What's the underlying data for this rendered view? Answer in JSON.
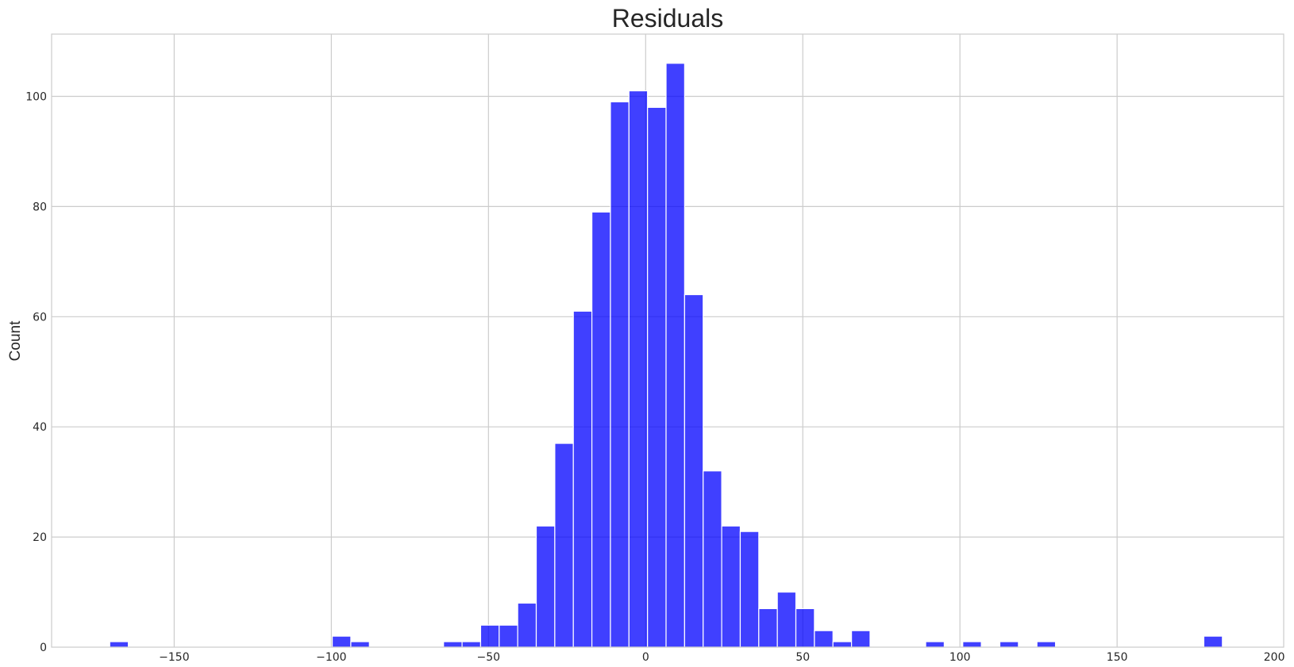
{
  "chart_data": {
    "type": "bar",
    "title": "Residuals",
    "xlabel": "",
    "ylabel": "Count",
    "xlim": [
      -189,
      203
    ],
    "ylim": [
      0,
      111.3
    ],
    "grid": true,
    "x_ticks": [
      -150,
      -100,
      -50,
      0,
      50,
      100,
      150,
      200
    ],
    "x_tick_labels": [
      "−150",
      "−100",
      "−50",
      "0",
      "50",
      "100",
      "150",
      "200"
    ],
    "y_ticks": [
      0,
      20,
      40,
      60,
      80,
      100
    ],
    "y_tick_labels": [
      "0",
      "20",
      "40",
      "60",
      "80",
      "100"
    ],
    "bar_color": "#0000ff",
    "bar_opacity": 0.75,
    "bin_width": 5.9,
    "bins": [
      {
        "x0": -170.5,
        "count": 1
      },
      {
        "x0": -99.7,
        "count": 2
      },
      {
        "x0": -93.8,
        "count": 1
      },
      {
        "x0": -64.3,
        "count": 1
      },
      {
        "x0": -58.4,
        "count": 1
      },
      {
        "x0": -52.5,
        "count": 4
      },
      {
        "x0": -46.6,
        "count": 4
      },
      {
        "x0": -40.7,
        "count": 8
      },
      {
        "x0": -34.8,
        "count": 22
      },
      {
        "x0": -28.9,
        "count": 37
      },
      {
        "x0": -23.0,
        "count": 61
      },
      {
        "x0": -17.1,
        "count": 79
      },
      {
        "x0": -11.2,
        "count": 99
      },
      {
        "x0": -5.3,
        "count": 101
      },
      {
        "x0": 0.6,
        "count": 98
      },
      {
        "x0": 6.5,
        "count": 106
      },
      {
        "x0": 12.4,
        "count": 64
      },
      {
        "x0": 18.3,
        "count": 32
      },
      {
        "x0": 24.2,
        "count": 22
      },
      {
        "x0": 30.1,
        "count": 21
      },
      {
        "x0": 36.0,
        "count": 7
      },
      {
        "x0": 41.9,
        "count": 10
      },
      {
        "x0": 47.8,
        "count": 7
      },
      {
        "x0": 53.7,
        "count": 3
      },
      {
        "x0": 59.6,
        "count": 1
      },
      {
        "x0": 65.5,
        "count": 3
      },
      {
        "x0": 89.1,
        "count": 1
      },
      {
        "x0": 100.9,
        "count": 1
      },
      {
        "x0": 112.7,
        "count": 1
      },
      {
        "x0": 124.5,
        "count": 1
      },
      {
        "x0": 177.6,
        "count": 2
      }
    ]
  }
}
